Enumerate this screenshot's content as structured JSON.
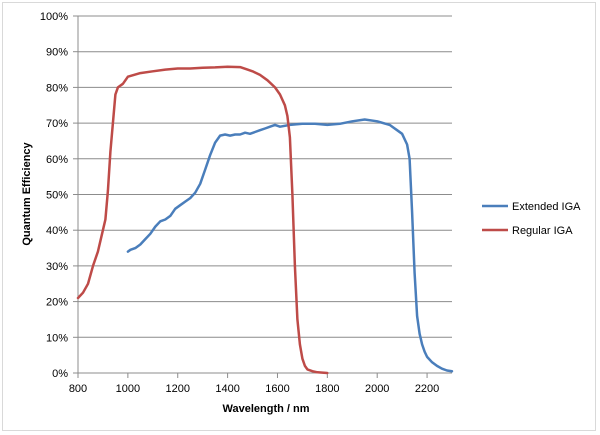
{
  "chart_data": {
    "type": "line",
    "xlabel": "Wavelength / nm",
    "ylabel": "Quantum Efficiency",
    "xlim": [
      800,
      2300
    ],
    "ylim": [
      0,
      1
    ],
    "x_ticks": [
      800,
      1000,
      1200,
      1400,
      1600,
      1800,
      2000,
      2200
    ],
    "x_tick_labels": [
      "800",
      "1000",
      "1200",
      "1400",
      "1600",
      "1800",
      "2000",
      "2200"
    ],
    "y_ticks": [
      0,
      0.1,
      0.2,
      0.3,
      0.4,
      0.5,
      0.6,
      0.7,
      0.8,
      0.9,
      1.0
    ],
    "y_tick_labels": [
      "0%",
      "10%",
      "20%",
      "30%",
      "40%",
      "50%",
      "60%",
      "70%",
      "80%",
      "90%",
      "100%"
    ],
    "grid": "horizontal",
    "legend_position": "right",
    "series": [
      {
        "name": "Extended IGA",
        "color": "#4a7ebb",
        "x": [
          1000,
          1010,
          1030,
          1050,
          1070,
          1090,
          1110,
          1130,
          1150,
          1170,
          1190,
          1210,
          1230,
          1250,
          1270,
          1290,
          1310,
          1330,
          1350,
          1370,
          1390,
          1410,
          1430,
          1450,
          1470,
          1490,
          1510,
          1530,
          1550,
          1570,
          1590,
          1610,
          1650,
          1700,
          1750,
          1800,
          1850,
          1900,
          1950,
          2000,
          2050,
          2080,
          2100,
          2120,
          2130,
          2140,
          2150,
          2160,
          2170,
          2180,
          2190,
          2200,
          2220,
          2240,
          2260,
          2280,
          2300
        ],
        "y": [
          0.34,
          0.345,
          0.35,
          0.36,
          0.375,
          0.39,
          0.41,
          0.425,
          0.43,
          0.44,
          0.46,
          0.47,
          0.48,
          0.49,
          0.505,
          0.53,
          0.57,
          0.61,
          0.645,
          0.665,
          0.668,
          0.665,
          0.668,
          0.668,
          0.673,
          0.67,
          0.675,
          0.68,
          0.685,
          0.69,
          0.695,
          0.69,
          0.695,
          0.698,
          0.698,
          0.695,
          0.698,
          0.705,
          0.71,
          0.705,
          0.695,
          0.68,
          0.67,
          0.64,
          0.6,
          0.45,
          0.28,
          0.16,
          0.11,
          0.08,
          0.06,
          0.045,
          0.03,
          0.02,
          0.012,
          0.007,
          0.005
        ]
      },
      {
        "name": "Regular IGA",
        "color": "#be4b48",
        "x": [
          800,
          820,
          840,
          860,
          880,
          900,
          910,
          920,
          930,
          940,
          950,
          960,
          980,
          1000,
          1050,
          1100,
          1150,
          1200,
          1250,
          1300,
          1350,
          1400,
          1450,
          1480,
          1500,
          1530,
          1560,
          1590,
          1610,
          1630,
          1640,
          1650,
          1660,
          1670,
          1680,
          1690,
          1700,
          1710,
          1720,
          1740,
          1760,
          1780,
          1800
        ],
        "y": [
          0.21,
          0.225,
          0.25,
          0.3,
          0.34,
          0.4,
          0.43,
          0.51,
          0.62,
          0.7,
          0.78,
          0.8,
          0.81,
          0.83,
          0.84,
          0.845,
          0.85,
          0.853,
          0.853,
          0.855,
          0.856,
          0.858,
          0.857,
          0.85,
          0.845,
          0.835,
          0.82,
          0.8,
          0.78,
          0.75,
          0.72,
          0.66,
          0.5,
          0.3,
          0.15,
          0.08,
          0.04,
          0.02,
          0.01,
          0.005,
          0.002,
          0.001,
          0
        ]
      }
    ]
  }
}
